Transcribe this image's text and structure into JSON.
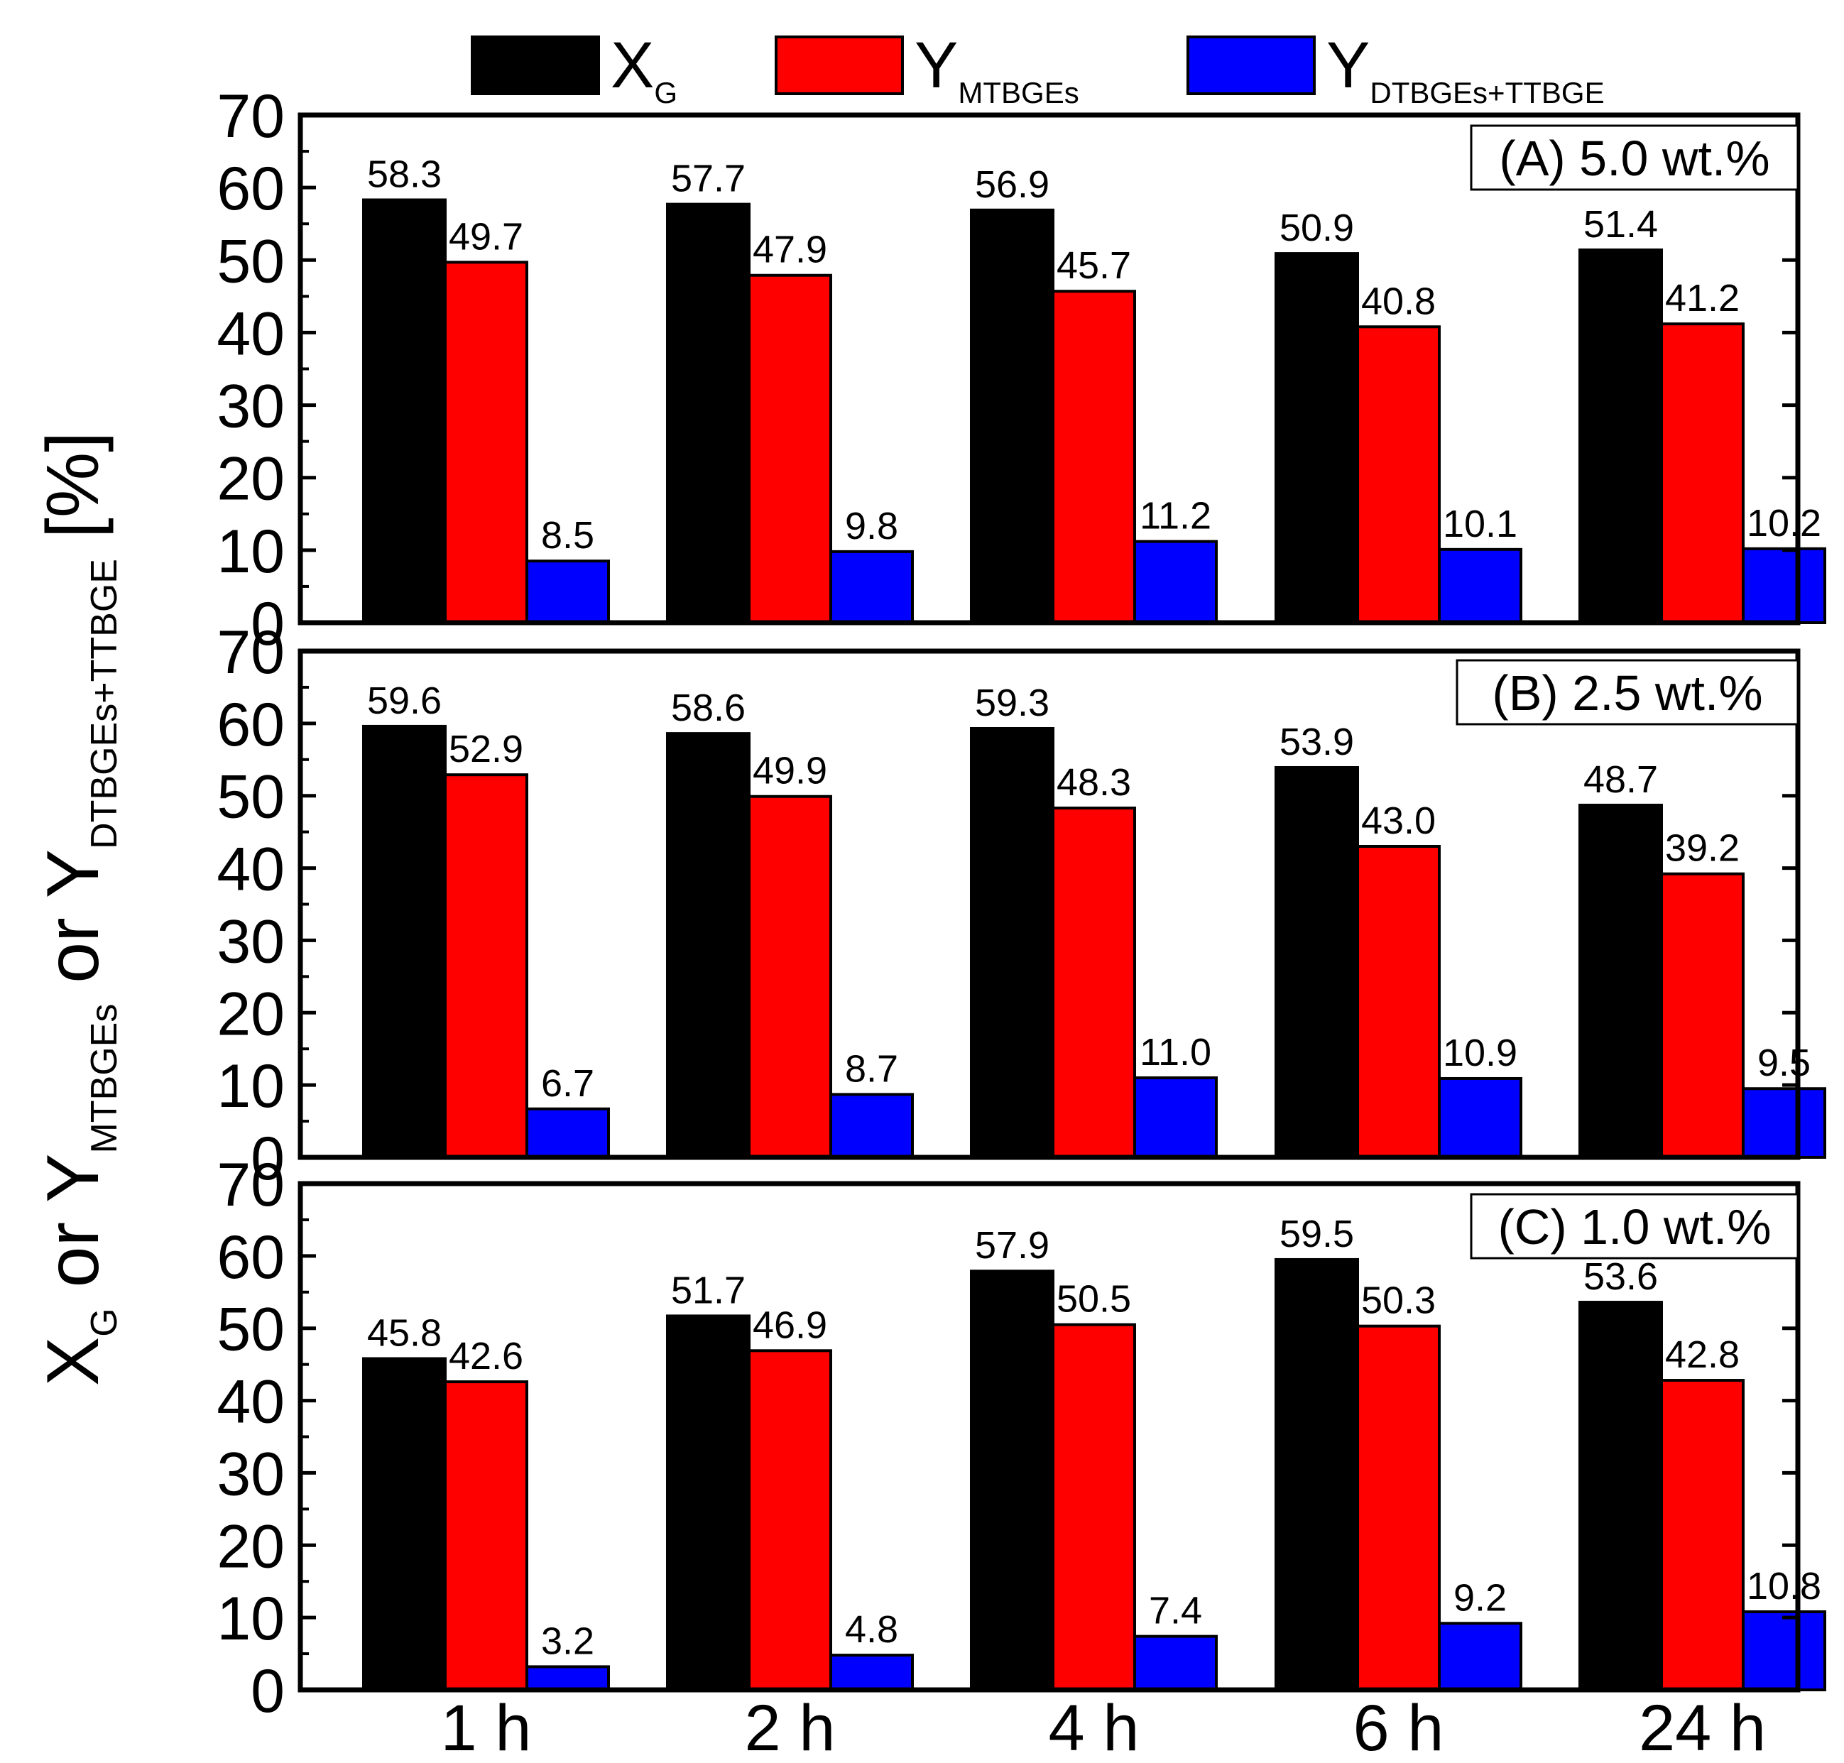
{
  "chart_data": {
    "type": "bar",
    "categories": [
      "1 h",
      "2 h",
      "4 h",
      "6 h",
      "24 h"
    ],
    "ylim": [
      0,
      70
    ],
    "yticks": [
      0,
      10,
      20,
      30,
      40,
      50,
      60,
      70
    ],
    "ylabel": {
      "parts": [
        {
          "text": "X",
          "sub": false
        },
        {
          "text": "G",
          "sub": true
        },
        {
          "text": " or Y",
          "sub": false
        },
        {
          "text": "MTBGEs",
          "sub": true
        },
        {
          "text": " or Y",
          "sub": false
        },
        {
          "text": "DTBGEs+TTBGE",
          "sub": true
        },
        {
          "text": " [%]",
          "sub": false
        }
      ]
    },
    "legend": [
      {
        "name": "X",
        "sub": "G",
        "color": "#000000"
      },
      {
        "name": "Y",
        "sub": "MTBGEs",
        "color": "#ff0000"
      },
      {
        "name": "Y",
        "sub": "DTBGEs+TTBGE",
        "color": "#0000ff"
      }
    ],
    "panels": [
      {
        "title": "(A) 5.0 wt.%",
        "series": [
          {
            "name": "XG",
            "color": "#000000",
            "values": [
              58.3,
              57.7,
              56.9,
              50.9,
              51.4
            ],
            "labels": [
              "58.3",
              "57.7",
              "56.9",
              "50.9",
              "51.4"
            ]
          },
          {
            "name": "YMTBGEs",
            "color": "#ff0000",
            "values": [
              49.7,
              47.9,
              45.7,
              40.8,
              41.2
            ],
            "labels": [
              "49.7",
              "47.9",
              "45.7",
              "40.8",
              "41.2"
            ]
          },
          {
            "name": "YDTBGEs+TTBGE",
            "color": "#0000ff",
            "values": [
              8.5,
              9.8,
              11.2,
              10.1,
              10.2
            ],
            "labels": [
              "8.5",
              "9.8",
              "11.2",
              "10.1",
              "10.2"
            ]
          }
        ]
      },
      {
        "title": "(B) 2.5 wt.%",
        "series": [
          {
            "name": "XG",
            "color": "#000000",
            "values": [
              59.6,
              58.6,
              59.3,
              53.9,
              48.7
            ],
            "labels": [
              "59.6",
              "58.6",
              "59.3",
              "53.9",
              "48.7"
            ]
          },
          {
            "name": "YMTBGEs",
            "color": "#ff0000",
            "values": [
              52.9,
              49.9,
              48.3,
              43.0,
              39.2
            ],
            "labels": [
              "52.9",
              "49.9",
              "48.3",
              "43.0",
              "39.2"
            ]
          },
          {
            "name": "YDTBGEs+TTBGE",
            "color": "#0000ff",
            "values": [
              6.7,
              8.7,
              11.0,
              10.9,
              9.5
            ],
            "labels": [
              "6.7",
              "8.7",
              "11.0",
              "10.9",
              "9.5"
            ]
          }
        ]
      },
      {
        "title": "(C) 1.0 wt.%",
        "series": [
          {
            "name": "XG",
            "color": "#000000",
            "values": [
              45.8,
              51.7,
              57.9,
              59.5,
              53.6
            ],
            "labels": [
              "45.8",
              "51.7",
              "57.9",
              "59.5",
              "53.6"
            ]
          },
          {
            "name": "YMTBGEs",
            "color": "#ff0000",
            "values": [
              42.6,
              46.9,
              50.5,
              50.3,
              42.8
            ],
            "labels": [
              "42.6",
              "46.9",
              "50.5",
              "50.3",
              "42.8"
            ]
          },
          {
            "name": "YDTBGEs+TTBGE",
            "color": "#0000ff",
            "values": [
              3.2,
              4.8,
              7.4,
              9.2,
              10.8
            ],
            "labels": [
              "3.2",
              "4.8",
              "7.4",
              "9.2",
              "10.8"
            ]
          }
        ]
      }
    ]
  }
}
